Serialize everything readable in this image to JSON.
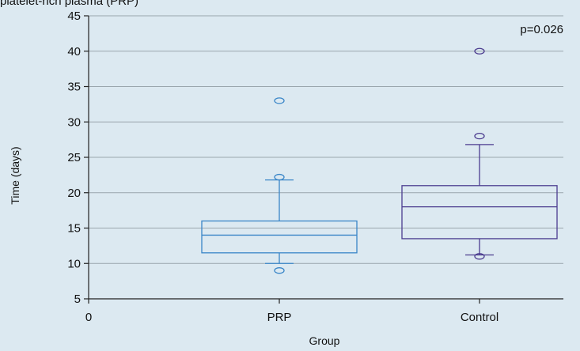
{
  "caption": "platelet-rich plasma (PRP)",
  "chart_data": {
    "type": "box",
    "xlabel": "Group",
    "ylabel": "Time (days)",
    "ylim": [
      5,
      45
    ],
    "yticks": [
      5,
      10,
      15,
      20,
      25,
      30,
      35,
      40,
      45
    ],
    "x_origin_label": "0",
    "grid": "horizontal",
    "annotation": "p=0.026",
    "categories": [
      "PRP",
      "Control"
    ],
    "series": [
      {
        "category": "PRP",
        "color": "#3a86c8",
        "whisker_low": 10,
        "q1": 11.5,
        "median": 14,
        "q3": 16,
        "whisker_high": 21.8,
        "outliers": [
          9,
          22.2,
          33
        ]
      },
      {
        "category": "Control",
        "color": "#4b3c8f",
        "whisker_low": 11.2,
        "q1": 13.5,
        "median": 18,
        "q3": 21,
        "whisker_high": 26.8,
        "outliers": [
          11,
          28,
          40
        ]
      }
    ]
  }
}
